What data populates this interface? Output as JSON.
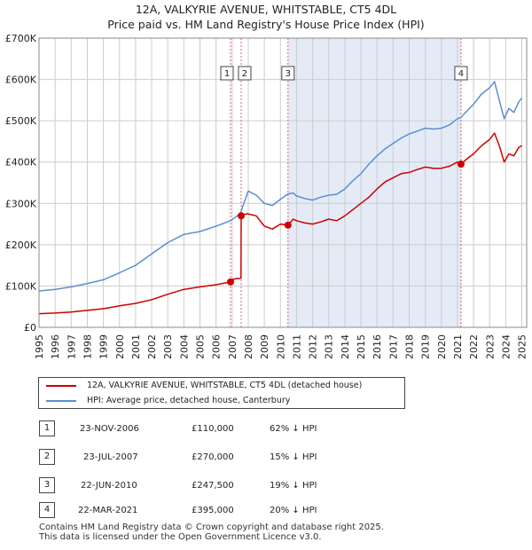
{
  "title_line1": "12A, VALKYRIE AVENUE, WHITSTABLE, CT5 4DL",
  "title_line2": "Price paid vs. HM Land Registry's House Price Index (HPI)",
  "colors": {
    "property": "#cc0000",
    "hpi": "#5b8fd1",
    "shade": "#e4ebf7",
    "grid": "#cccccc",
    "vline": "#e06060"
  },
  "chart_data": {
    "type": "line",
    "title": "12A, VALKYRIE AVENUE, WHITSTABLE, CT5 4DL — Price paid vs. HM Land Registry's House Price Index (HPI)",
    "xlabel": "",
    "ylabel": "",
    "xlim": [
      1995,
      2025.3
    ],
    "ylim": [
      0,
      700000
    ],
    "x_ticks": [
      1995,
      1996,
      1997,
      1998,
      1999,
      2000,
      2001,
      2002,
      2003,
      2004,
      2005,
      2006,
      2007,
      2008,
      2009,
      2010,
      2011,
      2012,
      2013,
      2014,
      2015,
      2016,
      2017,
      2018,
      2019,
      2020,
      2021,
      2022,
      2023,
      2024,
      2025
    ],
    "y_ticks": [
      {
        "value": 0,
        "label": "£0"
      },
      {
        "value": 100000,
        "label": "£100K"
      },
      {
        "value": 200000,
        "label": "£200K"
      },
      {
        "value": 300000,
        "label": "£300K"
      },
      {
        "value": 400000,
        "label": "£400K"
      },
      {
        "value": 500000,
        "label": "£500K"
      },
      {
        "value": 600000,
        "label": "£600K"
      },
      {
        "value": 700000,
        "label": "£700K"
      }
    ],
    "grid": true,
    "shaded_range": [
      2010.47,
      2021.22
    ],
    "series": [
      {
        "name": "12A, VALKYRIE AVENUE, WHITSTABLE, CT5 4DL (detached house)",
        "points": [
          [
            1995,
            33000
          ],
          [
            1996,
            34500
          ],
          [
            1997,
            37000
          ],
          [
            1998,
            41000
          ],
          [
            1999,
            45000
          ],
          [
            2000,
            52000
          ],
          [
            2001,
            58000
          ],
          [
            2002,
            67000
          ],
          [
            2003,
            80000
          ],
          [
            2004,
            92000
          ],
          [
            2005,
            98000
          ],
          [
            2006,
            103000
          ],
          [
            2006.9,
            110000
          ],
          [
            2007.0,
            116000
          ],
          [
            2007.3,
            118000
          ],
          [
            2007.55,
            119000
          ],
          [
            2007.56,
            270000
          ],
          [
            2007.9,
            275000
          ],
          [
            2008.5,
            270000
          ],
          [
            2009.0,
            245000
          ],
          [
            2009.5,
            238000
          ],
          [
            2010.0,
            250000
          ],
          [
            2010.47,
            247500
          ],
          [
            2010.8,
            262000
          ],
          [
            2011.0,
            258000
          ],
          [
            2011.5,
            253000
          ],
          [
            2012,
            250000
          ],
          [
            2012.5,
            255000
          ],
          [
            2013,
            262000
          ],
          [
            2013.5,
            258000
          ],
          [
            2014,
            270000
          ],
          [
            2014.5,
            285000
          ],
          [
            2015,
            300000
          ],
          [
            2015.5,
            315000
          ],
          [
            2016,
            335000
          ],
          [
            2016.5,
            352000
          ],
          [
            2017,
            362000
          ],
          [
            2017.5,
            372000
          ],
          [
            2018,
            375000
          ],
          [
            2018.5,
            382000
          ],
          [
            2019,
            388000
          ],
          [
            2019.5,
            385000
          ],
          [
            2020,
            385000
          ],
          [
            2020.5,
            390000
          ],
          [
            2021.0,
            400000
          ],
          [
            2021.22,
            395000
          ],
          [
            2021.5,
            405000
          ],
          [
            2022,
            420000
          ],
          [
            2022.5,
            440000
          ],
          [
            2023.0,
            455000
          ],
          [
            2023.3,
            470000
          ],
          [
            2023.6,
            440000
          ],
          [
            2023.9,
            400000
          ],
          [
            2024.2,
            420000
          ],
          [
            2024.5,
            415000
          ],
          [
            2024.8,
            435000
          ],
          [
            2025.0,
            440000
          ]
        ]
      },
      {
        "name": "HPI: Average price, detached house, Canterbury",
        "points": [
          [
            1995,
            88000
          ],
          [
            1996,
            92000
          ],
          [
            1997,
            98000
          ],
          [
            1998,
            106000
          ],
          [
            1999,
            115000
          ],
          [
            2000,
            132000
          ],
          [
            2001,
            150000
          ],
          [
            2002,
            178000
          ],
          [
            2003,
            205000
          ],
          [
            2004,
            225000
          ],
          [
            2005,
            232000
          ],
          [
            2006,
            245000
          ],
          [
            2006.9,
            258000
          ],
          [
            2007.5,
            275000
          ],
          [
            2008.0,
            330000
          ],
          [
            2008.5,
            320000
          ],
          [
            2009.0,
            300000
          ],
          [
            2009.5,
            295000
          ],
          [
            2010.0,
            310000
          ],
          [
            2010.47,
            323000
          ],
          [
            2010.8,
            325000
          ],
          [
            2011,
            318000
          ],
          [
            2011.5,
            312000
          ],
          [
            2012,
            308000
          ],
          [
            2012.5,
            315000
          ],
          [
            2013,
            320000
          ],
          [
            2013.5,
            322000
          ],
          [
            2014,
            335000
          ],
          [
            2014.5,
            355000
          ],
          [
            2015,
            372000
          ],
          [
            2015.5,
            395000
          ],
          [
            2016,
            415000
          ],
          [
            2016.5,
            432000
          ],
          [
            2017,
            445000
          ],
          [
            2017.5,
            458000
          ],
          [
            2018,
            468000
          ],
          [
            2018.5,
            475000
          ],
          [
            2019,
            482000
          ],
          [
            2019.5,
            480000
          ],
          [
            2020,
            482000
          ],
          [
            2020.5,
            490000
          ],
          [
            2021.0,
            505000
          ],
          [
            2021.22,
            508000
          ],
          [
            2021.5,
            520000
          ],
          [
            2022,
            540000
          ],
          [
            2022.5,
            565000
          ],
          [
            2023.0,
            580000
          ],
          [
            2023.3,
            595000
          ],
          [
            2023.6,
            550000
          ],
          [
            2023.9,
            505000
          ],
          [
            2024.2,
            530000
          ],
          [
            2024.5,
            520000
          ],
          [
            2024.8,
            545000
          ],
          [
            2025.0,
            555000
          ]
        ]
      }
    ],
    "sales": [
      {
        "id": "1",
        "x": 2006.9,
        "price": 110000
      },
      {
        "id": "2",
        "x": 2007.56,
        "price": 270000
      },
      {
        "id": "3",
        "x": 2010.47,
        "price": 247500
      },
      {
        "id": "4",
        "x": 2021.22,
        "price": 395000
      }
    ],
    "annotations": [
      {
        "label": "1",
        "x": 2006.9
      },
      {
        "label": "2",
        "x": 2007.56
      },
      {
        "label": "3",
        "x": 2010.47
      },
      {
        "label": "4",
        "x": 2021.22
      }
    ]
  },
  "legend": {
    "property_label": "12A, VALKYRIE AVENUE, WHITSTABLE, CT5 4DL (detached house)",
    "hpi_label": "HPI: Average price, detached house, Canterbury"
  },
  "transactions": [
    {
      "num": "1",
      "date": "23-NOV-2006",
      "price": "£110,000",
      "hpi": "62% ↓ HPI"
    },
    {
      "num": "2",
      "date": "23-JUL-2007",
      "price": "£270,000",
      "hpi": "15% ↓ HPI"
    },
    {
      "num": "3",
      "date": "22-JUN-2010",
      "price": "£247,500",
      "hpi": "19% ↓ HPI"
    },
    {
      "num": "4",
      "date": "22-MAR-2021",
      "price": "£395,000",
      "hpi": "20% ↓ HPI"
    }
  ],
  "footer_line1": "Contains HM Land Registry data © Crown copyright and database right 2025.",
  "footer_line2": "This data is licensed under the Open Government Licence v3.0."
}
